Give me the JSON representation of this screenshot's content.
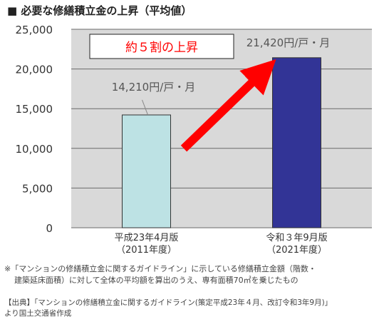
{
  "title": "■ 必要な修繕積立金の上昇（平均値）",
  "chart_data": {
    "type": "bar",
    "categories": [
      "平成23年4月版（2011年度）",
      "令和３年9月版（2021年度）"
    ],
    "category_lines": [
      [
        "平成23年4月版",
        "（2011年度）"
      ],
      [
        "令和３年9月版",
        "（2021年度）"
      ]
    ],
    "values": [
      14210,
      21420
    ],
    "data_labels": [
      "14,210円/戸・月",
      "21,420円/戸・月"
    ],
    "bar_colors": [
      "#bde2e4",
      "#323496"
    ],
    "ylim": [
      0,
      25000
    ],
    "yticks": [
      0,
      5000,
      10000,
      15000,
      20000,
      25000
    ],
    "ytick_labels": [
      "0",
      "5,000",
      "10,000",
      "15,000",
      "20,000",
      "25,000"
    ],
    "grid": true,
    "callout": "約５割の上昇",
    "arrow_color": "#ff0000"
  },
  "note_line1": "※「マンションの修繕積立金に関するガイドライン」に示している修繕積立金額（階数・",
  "note_line2": "建築延床面積）に対して全体の平均額を算出のうえ、専有面積70㎡を乗じたもの",
  "source_line1": "【出典】「マンションの修繕積立金に関するガイドライン(策定平成23年４月、改訂令和3年9月)」",
  "source_line2": "より国土交通省作成"
}
